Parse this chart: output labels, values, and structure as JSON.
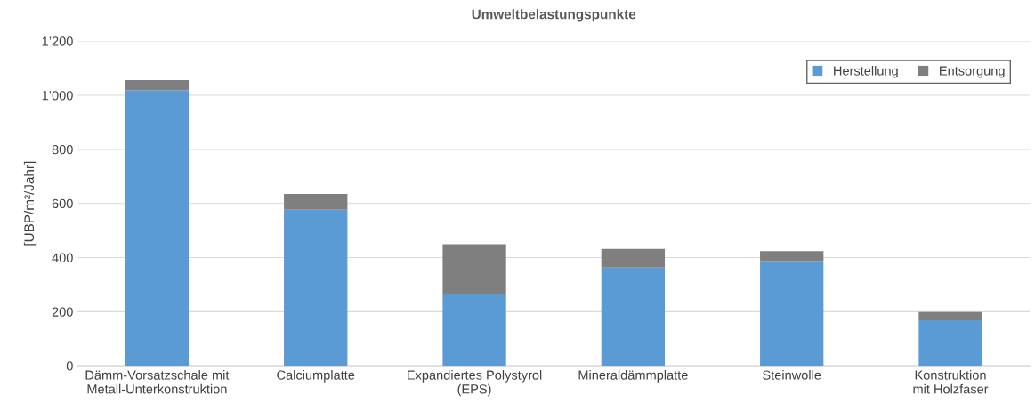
{
  "chart_data": {
    "type": "bar",
    "stacked": true,
    "title": "Umweltbelastungspunkte",
    "ylabel": "[UBP/m²/Jahr]",
    "categories": [
      "Dämm-Vorsatzschale mit\nMetall-Unterkonstruktion",
      "Calciumplatte",
      "Expandiertes Polystyrol\n(EPS)",
      "Mineraldämmplatte",
      "Steinwolle",
      "Konstruktion\nmit Holzfaser"
    ],
    "series": [
      {
        "name": "Herstellung",
        "color": "#5b9bd5",
        "values": [
          1018,
          577,
          267,
          363,
          387,
          168
        ]
      },
      {
        "name": "Entsorgung",
        "color": "#7f7f7f",
        "values": [
          38,
          58,
          182,
          69,
          37,
          31
        ]
      }
    ],
    "ylim": [
      0,
      1200
    ],
    "yticks": [
      0,
      200,
      400,
      600,
      800,
      {
        "value": 1000,
        "label": "1’000"
      },
      {
        "value": 1200,
        "label": "1’200"
      }
    ],
    "grid": "y",
    "legend": "top right"
  }
}
